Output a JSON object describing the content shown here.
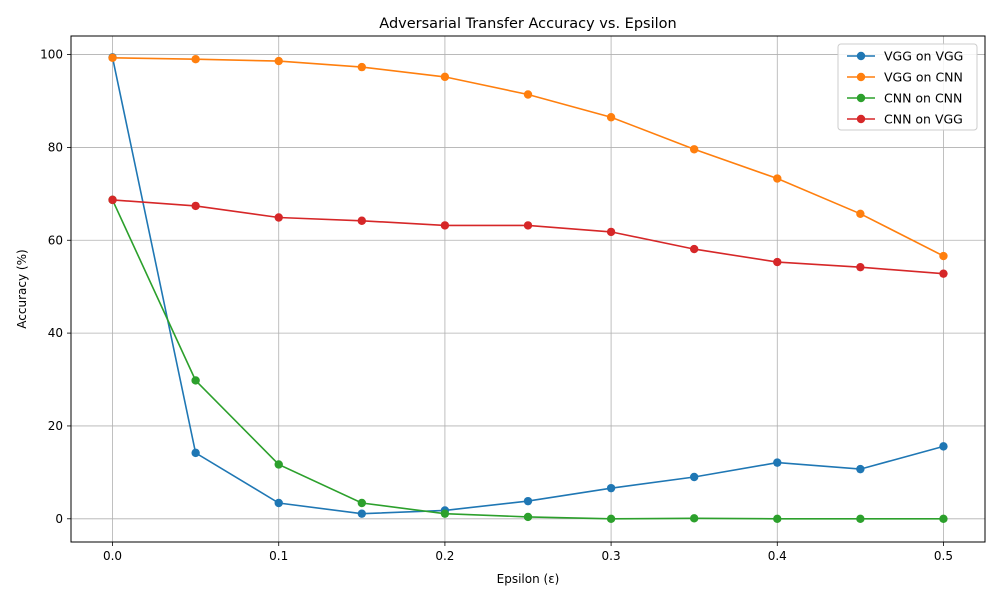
{
  "chart_data": {
    "type": "line",
    "title": "Adversarial Transfer Accuracy vs. Epsilon",
    "xlabel": "Epsilon (ε)",
    "ylabel": "Accuracy (%)",
    "x": [
      0.0,
      0.05,
      0.1,
      0.15,
      0.2,
      0.25,
      0.3,
      0.35,
      0.4,
      0.45,
      0.5
    ],
    "xlim": [
      -0.025,
      0.525
    ],
    "ylim": [
      -5,
      104
    ],
    "xticks": [
      0.0,
      0.1,
      0.2,
      0.3,
      0.4,
      0.5
    ],
    "xtick_labels": [
      "0.0",
      "0.1",
      "0.2",
      "0.3",
      "0.4",
      "0.5"
    ],
    "yticks": [
      0,
      20,
      40,
      60,
      80,
      100
    ],
    "ytick_labels": [
      "0",
      "20",
      "40",
      "60",
      "80",
      "100"
    ],
    "grid": true,
    "legend_position": "top-right",
    "series": [
      {
        "name": "VGG on VGG",
        "color": "#1f77b4",
        "values": [
          99.4,
          14.2,
          3.4,
          1.1,
          1.8,
          3.8,
          6.6,
          9.0,
          12.1,
          10.7,
          15.6
        ]
      },
      {
        "name": "VGG on CNN",
        "color": "#ff7f0e",
        "values": [
          99.3,
          99.0,
          98.6,
          97.3,
          95.2,
          91.4,
          86.5,
          79.6,
          73.3,
          65.7,
          56.6
        ]
      },
      {
        "name": "CNN on CNN",
        "color": "#2ca02c",
        "values": [
          68.7,
          29.8,
          11.7,
          3.4,
          1.1,
          0.4,
          0.0,
          0.1,
          0.0,
          0.0,
          0.0
        ]
      },
      {
        "name": "CNN on VGG",
        "color": "#d62728",
        "values": [
          68.7,
          67.4,
          64.9,
          64.2,
          63.2,
          63.2,
          61.8,
          58.1,
          55.3,
          54.2,
          52.8
        ]
      }
    ]
  }
}
